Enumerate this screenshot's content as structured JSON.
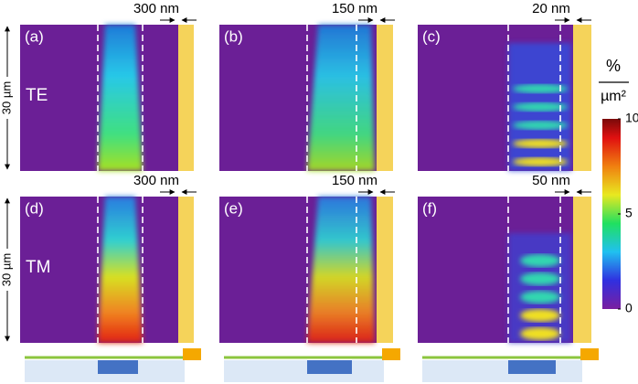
{
  "panels": [
    {
      "label": "(a)",
      "gap": "300 nm"
    },
    {
      "label": "(b)",
      "gap": "150 nm"
    },
    {
      "label": "(c)",
      "gap": "20 nm"
    },
    {
      "label": "(d)",
      "gap": "300 nm"
    },
    {
      "label": "(e)",
      "gap": "150 nm"
    },
    {
      "label": "(f)",
      "gap": "50 nm"
    }
  ],
  "rows": [
    {
      "mode": "TE",
      "height": "30 µm"
    },
    {
      "mode": "TM",
      "height": "30 µm"
    }
  ],
  "colorbar": {
    "unit_top": "%",
    "unit_bottom": "µm²",
    "range": [
      0,
      10
    ],
    "ticks": [
      0,
      5,
      10
    ]
  }
}
